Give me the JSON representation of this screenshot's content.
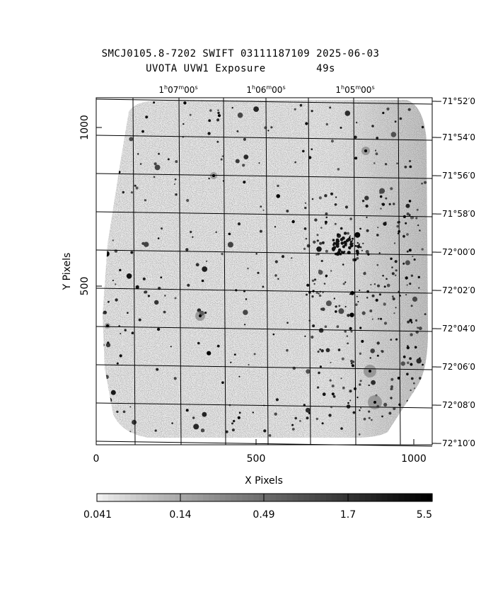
{
  "header": {
    "title_line1": "SMCJ0105.8-7202 SWIFT 03111187109 2025-06-03",
    "title_line2": "UVOTA UVW1 Exposure        49s"
  },
  "axes": {
    "xlabel": "X Pixels",
    "ylabel": "Y Pixels",
    "x_ticks": [
      "0",
      "500",
      "1000"
    ],
    "y_ticks": [
      "500",
      "1000"
    ],
    "x_range": [
      0,
      1050
    ],
    "y_range": [
      0,
      1060
    ],
    "ra_ticks": [
      {
        "h": "1",
        "m": "07",
        "s": "00"
      },
      {
        "h": "1",
        "m": "06",
        "s": "00"
      },
      {
        "h": "1",
        "m": "05",
        "s": "00"
      }
    ],
    "dec_ticks": [
      "−71°52′0",
      "−71°54′0",
      "−71°56′0",
      "−71°58′0",
      "−72°00′0",
      "−72°02′0",
      "−72°04′0",
      "−72°06′0",
      "−72°08′0",
      "−72°10′0"
    ]
  },
  "colorbar": {
    "labels": [
      "0.041",
      "0.14",
      "0.49",
      "1.7",
      "5.5"
    ],
    "scale": "log",
    "colors": [
      "#f0f0f0",
      "#000000"
    ]
  }
}
